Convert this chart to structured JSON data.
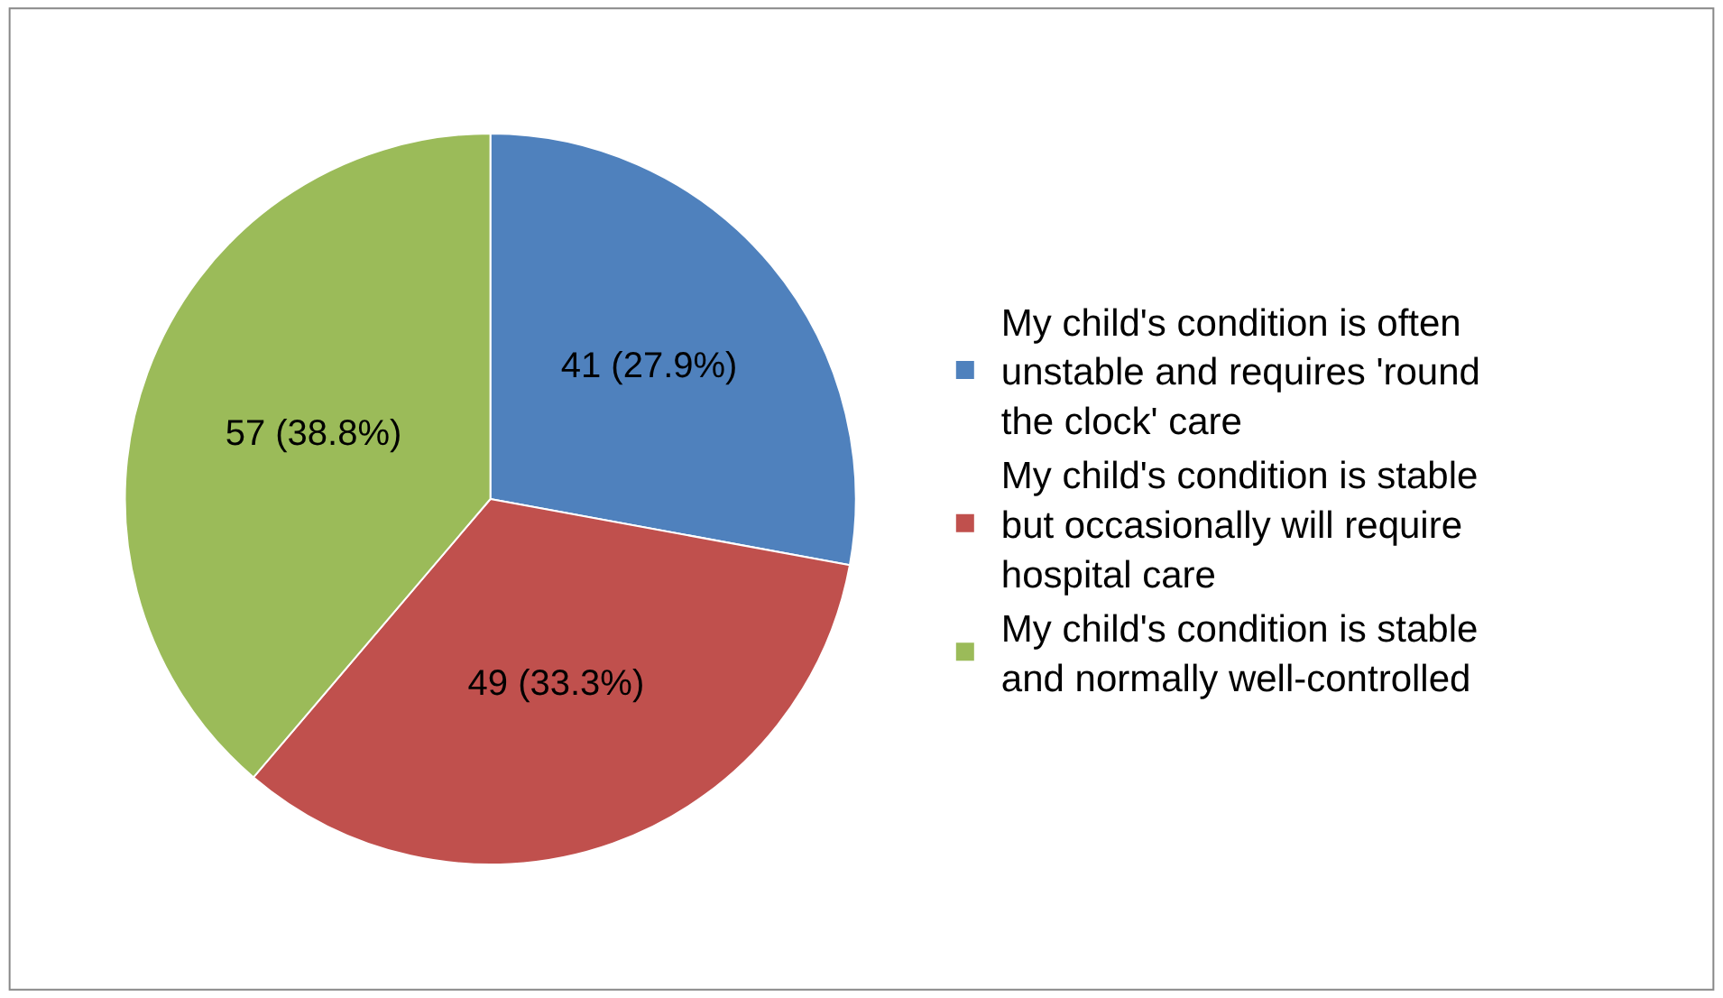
{
  "chart_data": {
    "type": "pie",
    "categories": [
      "My child's condition is often unstable and requires 'round the clock' care",
      "My child's condition is stable but occasionally will require hospital care",
      "My child's condition is stable and normally well-controlled"
    ],
    "values": [
      41,
      49,
      57
    ],
    "colors": [
      "#4f81bd",
      "#c0504d",
      "#9bbb59"
    ],
    "value_labels": [
      "41 (27.9%)",
      "49 (33.3%)",
      "57 (38.8%)"
    ],
    "legend": "right"
  }
}
